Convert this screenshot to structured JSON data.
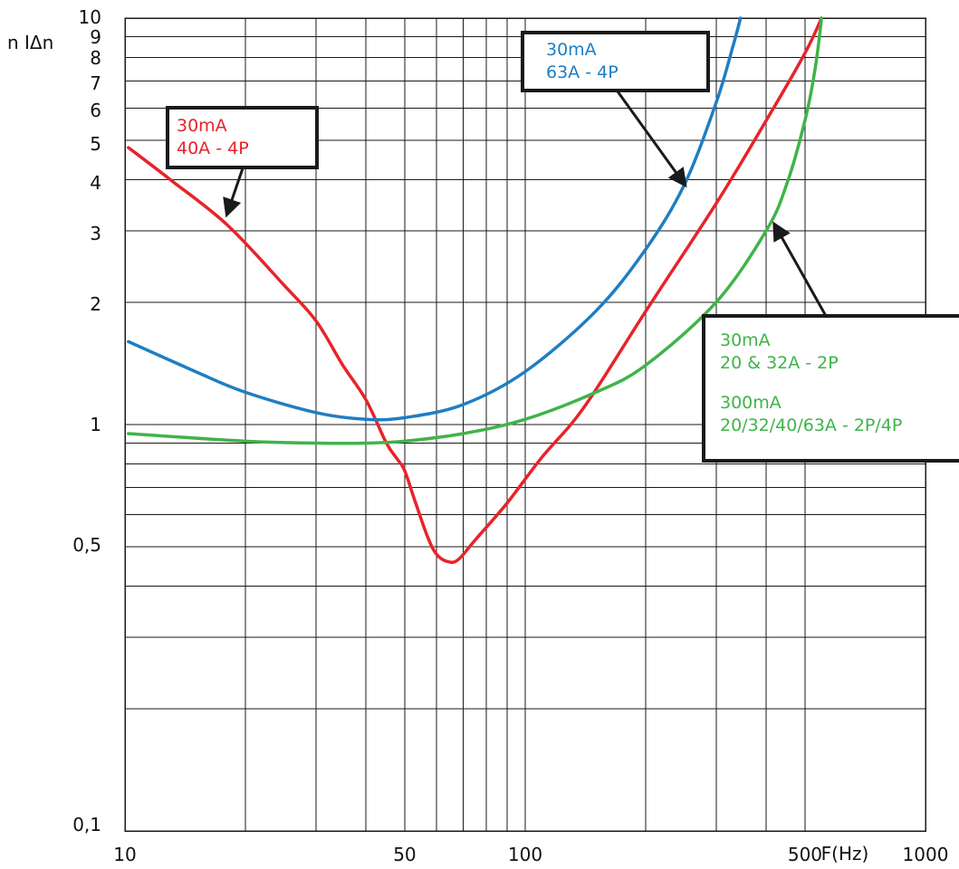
{
  "chart_data": {
    "type": "line",
    "x_scale": "log",
    "y_scale": "log",
    "xlabel": "F(Hz)",
    "ylabel": "n IΔn",
    "xlim": [
      10,
      1000
    ],
    "ylim": [
      0.1,
      10
    ],
    "grid": true,
    "x_ticks": [
      {
        "value": 10,
        "label": "10"
      },
      {
        "value": 50,
        "label": "50"
      },
      {
        "value": 100,
        "label": "100"
      },
      {
        "value": 500,
        "label": "500"
      },
      {
        "value": 1000,
        "label": "1000"
      }
    ],
    "y_ticks": [
      {
        "value": 0.1,
        "label": "0,1"
      },
      {
        "value": 0.5,
        "label": "0,5"
      },
      {
        "value": 1,
        "label": "1"
      },
      {
        "value": 2,
        "label": "2"
      },
      {
        "value": 3,
        "label": "3"
      },
      {
        "value": 4,
        "label": "4"
      },
      {
        "value": 5,
        "label": "5"
      },
      {
        "value": 6,
        "label": "6"
      },
      {
        "value": 7,
        "label": "7"
      },
      {
        "value": 8,
        "label": "8"
      },
      {
        "value": 9,
        "label": "9"
      },
      {
        "value": 10,
        "label": "10"
      }
    ],
    "x_grid": [
      20,
      30,
      40,
      50,
      60,
      70,
      80,
      90,
      100,
      200,
      300,
      400,
      500,
      1000
    ],
    "y_grid": [
      0.2,
      0.3,
      0.4,
      0.5,
      0.6,
      0.7,
      0.8,
      0.9,
      1,
      2,
      3,
      4,
      5,
      6,
      7,
      8,
      9,
      10
    ],
    "series": [
      {
        "name": "30mA 40A - 4P",
        "color": "#e8232a",
        "points": [
          [
            10.2,
            4.8
          ],
          [
            13,
            4.0
          ],
          [
            18,
            3.1
          ],
          [
            25,
            2.2
          ],
          [
            30,
            1.8
          ],
          [
            35,
            1.4
          ],
          [
            40,
            1.15
          ],
          [
            45,
            0.9
          ],
          [
            48,
            0.82
          ],
          [
            50,
            0.77
          ],
          [
            53,
            0.65
          ],
          [
            57,
            0.53
          ],
          [
            60,
            0.48
          ],
          [
            64,
            0.46
          ],
          [
            68,
            0.465
          ],
          [
            75,
            0.52
          ],
          [
            90,
            0.64
          ],
          [
            110,
            0.83
          ],
          [
            140,
            1.1
          ],
          [
            200,
            1.9
          ],
          [
            300,
            3.5
          ],
          [
            400,
            5.6
          ],
          [
            500,
            8.2
          ],
          [
            550,
            10
          ]
        ]
      },
      {
        "name": "30mA 63A - 4P",
        "color": "#1f7ec2",
        "points": [
          [
            10.2,
            1.6
          ],
          [
            15,
            1.35
          ],
          [
            20,
            1.2
          ],
          [
            30,
            1.07
          ],
          [
            40,
            1.03
          ],
          [
            50,
            1.04
          ],
          [
            70,
            1.12
          ],
          [
            100,
            1.35
          ],
          [
            150,
            1.9
          ],
          [
            200,
            2.7
          ],
          [
            250,
            3.9
          ],
          [
            300,
            6.2
          ],
          [
            330,
            8.5
          ],
          [
            345,
            10
          ]
        ]
      },
      {
        "name": "30mA 20 & 32A - 2P / 300mA 20/32/40/63A - 2P/4P",
        "color": "#3fb449",
        "points": [
          [
            10.2,
            0.95
          ],
          [
            20,
            0.91
          ],
          [
            30,
            0.9
          ],
          [
            40,
            0.9
          ],
          [
            50,
            0.91
          ],
          [
            70,
            0.95
          ],
          [
            100,
            1.03
          ],
          [
            150,
            1.2
          ],
          [
            200,
            1.4
          ],
          [
            300,
            2.0
          ],
          [
            400,
            3.0
          ],
          [
            450,
            3.9
          ],
          [
            500,
            5.6
          ],
          [
            530,
            7.5
          ],
          [
            550,
            10
          ]
        ]
      }
    ],
    "annotations": [
      {
        "id": "red-callout",
        "lines": [
          "30mA",
          "40A - 4P"
        ],
        "colors": [
          "#e8232a",
          "#e8232a"
        ],
        "points_to": {
          "series": 0,
          "x": 18,
          "y": 3.3
        }
      },
      {
        "id": "blue-callout",
        "lines": [
          "30mA",
          "63A - 4P"
        ],
        "colors": [
          "#1f7ec2",
          "#1f7ec2"
        ],
        "points_to": {
          "series": 1,
          "x": 250,
          "y": 3.9
        }
      },
      {
        "id": "green-callout",
        "lines": [
          "30mA",
          "20 & 32A - 2P",
          "300mA",
          "20/32/40/63A - 2P/4P"
        ],
        "colors": [
          "#3fb449",
          "#3fb449",
          "#3fb449",
          "#3fb449"
        ],
        "points_to": {
          "series": 2,
          "x": 420,
          "y": 3.1
        }
      }
    ]
  }
}
